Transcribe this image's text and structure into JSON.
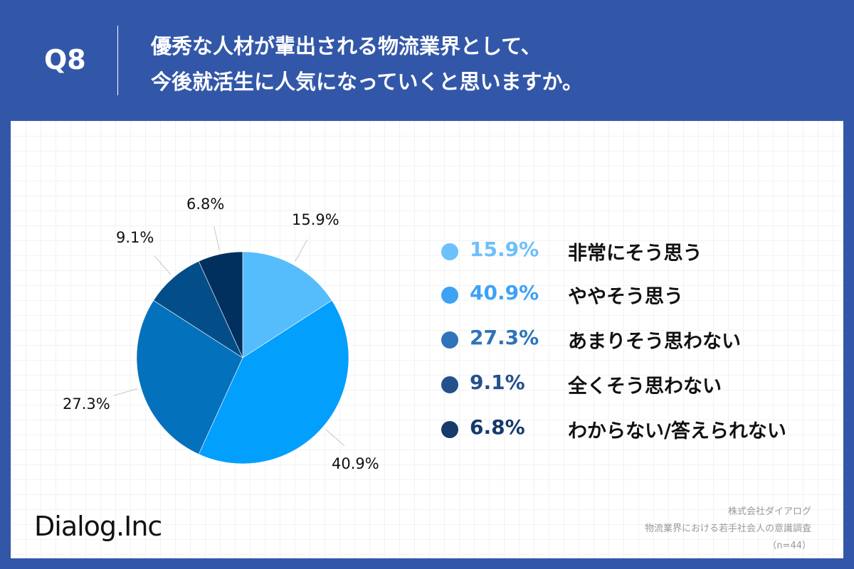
{
  "header": {
    "question_number": "Q8",
    "title_line1": "優秀な人材が輩出される物流業界として、",
    "title_line2": "今後就活生に人気になっていくと思いますか。"
  },
  "chart_data": {
    "type": "pie",
    "title": "優秀な人材が輩出される物流業界として、今後就活生に人気になっていくと思いますか。",
    "categories": [
      "非常にそう思う",
      "ややそう思う",
      "あまりそう思わない",
      "全くそう思わない",
      "わからない/答えられない"
    ],
    "values": [
      15.9,
      40.9,
      27.3,
      9.1,
      6.8
    ],
    "labels": [
      "15.9%",
      "40.9%",
      "27.3%",
      "9.1%",
      "6.8%"
    ],
    "colors": [
      "#55bdfb",
      "#039ffd",
      "#0471bc",
      "#034d89",
      "#02305e"
    ],
    "legend_colors": [
      "#6cc0fb",
      "#3da2f5",
      "#2f73b9",
      "#23518c",
      "#153a6b"
    ],
    "start_angle": "12 o'clock, clockwise",
    "legend_position": "right",
    "n": 44
  },
  "legend": [
    {
      "pct": "15.9%",
      "label": "非常にそう思う"
    },
    {
      "pct": "40.9%",
      "label": "ややそう思う"
    },
    {
      "pct": "27.3%",
      "label": "あまりそう思わない"
    },
    {
      "pct": "9.1%",
      "label": "全くそう思わない"
    },
    {
      "pct": "6.8%",
      "label": "わからない/答えられない"
    }
  ],
  "footer": {
    "logo": "Dialog.Inc",
    "source_company": "株式会社ダイアログ",
    "source_survey": "物流業界における若手社会人の意識調査",
    "sample_size": "（n=44）"
  }
}
